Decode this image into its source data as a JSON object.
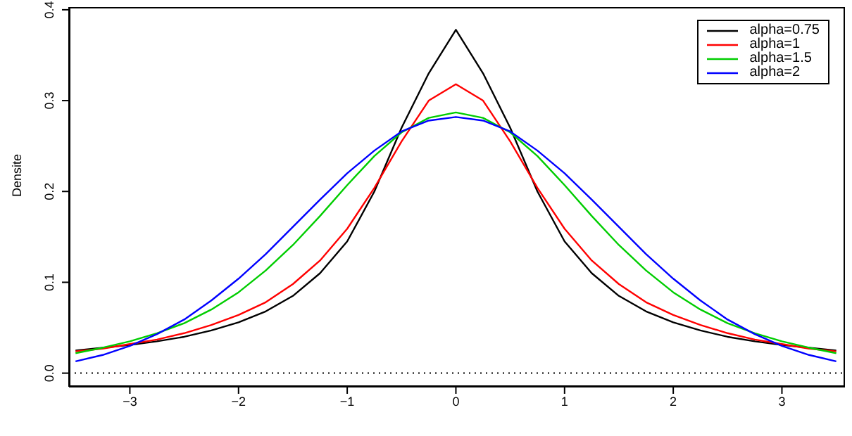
{
  "chart_data": {
    "type": "line",
    "ylabel": "Densite",
    "x": [
      -3.5,
      -3.25,
      -3,
      -2.75,
      -2.5,
      -2.25,
      -2,
      -1.75,
      -1.5,
      -1.25,
      -1,
      -0.75,
      -0.5,
      -0.25,
      0,
      0.25,
      0.5,
      0.75,
      1,
      1.25,
      1.5,
      1.75,
      2,
      2.25,
      2.5,
      2.75,
      3,
      3.25,
      3.5
    ],
    "series": [
      {
        "name": "alpha=0.75",
        "color": "#000000",
        "values": [
          0.025,
          0.028,
          0.031,
          0.035,
          0.04,
          0.047,
          0.056,
          0.068,
          0.085,
          0.11,
          0.145,
          0.2,
          0.27,
          0.33,
          0.378,
          0.33,
          0.27,
          0.2,
          0.145,
          0.11,
          0.085,
          0.068,
          0.056,
          0.047,
          0.04,
          0.035,
          0.031,
          0.028,
          0.025
        ]
      },
      {
        "name": "alpha=1",
        "color": "#ff0000",
        "values": [
          0.024,
          0.027,
          0.032,
          0.037,
          0.044,
          0.053,
          0.064,
          0.078,
          0.098,
          0.124,
          0.159,
          0.204,
          0.255,
          0.3,
          0.318,
          0.3,
          0.255,
          0.204,
          0.159,
          0.124,
          0.098,
          0.078,
          0.064,
          0.053,
          0.044,
          0.037,
          0.032,
          0.027,
          0.024
        ]
      },
      {
        "name": "alpha=1.5",
        "color": "#00cd00",
        "values": [
          0.022,
          0.028,
          0.035,
          0.044,
          0.055,
          0.07,
          0.089,
          0.113,
          0.141,
          0.173,
          0.207,
          0.239,
          0.265,
          0.281,
          0.287,
          0.281,
          0.265,
          0.239,
          0.207,
          0.173,
          0.141,
          0.113,
          0.089,
          0.07,
          0.055,
          0.044,
          0.035,
          0.028,
          0.022
        ]
      },
      {
        "name": "alpha=2",
        "color": "#0000ff",
        "values": [
          0.013,
          0.02,
          0.03,
          0.043,
          0.059,
          0.08,
          0.104,
          0.131,
          0.161,
          0.191,
          0.22,
          0.245,
          0.266,
          0.278,
          0.282,
          0.278,
          0.266,
          0.245,
          0.22,
          0.191,
          0.161,
          0.131,
          0.104,
          0.08,
          0.059,
          0.043,
          0.03,
          0.02,
          0.013
        ]
      }
    ],
    "xlim": [
      -3.56,
      3.58
    ],
    "xticks": [
      {
        "value": -3,
        "label": "−3"
      },
      {
        "value": -2,
        "label": "−2"
      },
      {
        "value": -1,
        "label": "−1"
      },
      0,
      1,
      2,
      3
    ],
    "ylim": [
      -0.015,
      0.403
    ],
    "yticks": [
      {
        "value": 0,
        "label": "0.0"
      },
      0.1,
      0.2,
      0.3,
      0.4
    ],
    "ref_lines": [
      {
        "axis": "y",
        "value": 0,
        "color": "#000000",
        "line_style": "dotted"
      }
    ],
    "grid": false,
    "legend": "top right",
    "marker": "none",
    "line_style": "solid"
  }
}
